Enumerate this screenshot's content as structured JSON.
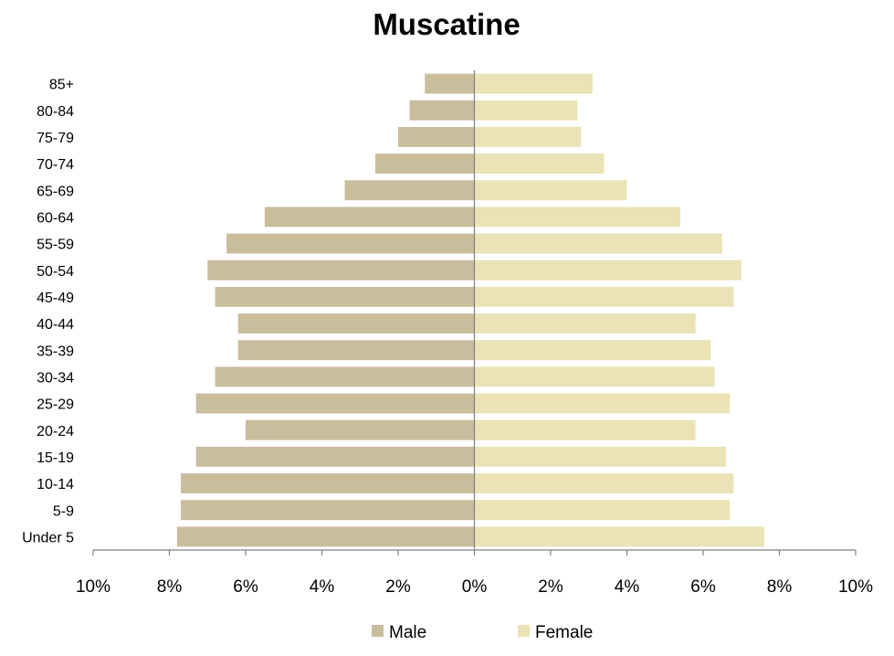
{
  "chart_data": {
    "type": "bar",
    "orientation": "horizontal",
    "title": "Muscatine",
    "categories": [
      "Under 5",
      "5-9",
      "10-14",
      "15-19",
      "20-24",
      "25-29",
      "30-34",
      "35-39",
      "40-44",
      "45-49",
      "50-54",
      "55-59",
      "60-64",
      "65-69",
      "70-74",
      "75-79",
      "80-84",
      "85+"
    ],
    "series": [
      {
        "name": "Male",
        "color": "#c9bd9c",
        "values": [
          7.8,
          7.7,
          7.7,
          7.3,
          6.0,
          7.3,
          6.8,
          6.2,
          6.2,
          6.8,
          7.0,
          6.5,
          5.5,
          3.4,
          2.6,
          2.0,
          1.7,
          1.3
        ]
      },
      {
        "name": "Female",
        "color": "#ebe3b5",
        "values": [
          7.6,
          6.7,
          6.8,
          6.6,
          5.8,
          6.7,
          6.3,
          6.2,
          5.8,
          6.8,
          7.0,
          6.5,
          5.4,
          4.0,
          3.4,
          2.8,
          2.7,
          3.1
        ]
      }
    ],
    "xlim": [
      -10,
      10
    ],
    "xticks": [
      -10,
      -8,
      -6,
      -4,
      -2,
      0,
      2,
      4,
      6,
      8,
      10
    ],
    "xtick_labels": [
      "10%",
      "8%",
      "6%",
      "4%",
      "2%",
      "0%",
      "2%",
      "4%",
      "6%",
      "8%",
      "10%"
    ],
    "xlabel": "",
    "ylabel": "",
    "grid": false,
    "legend_position": "bottom"
  }
}
